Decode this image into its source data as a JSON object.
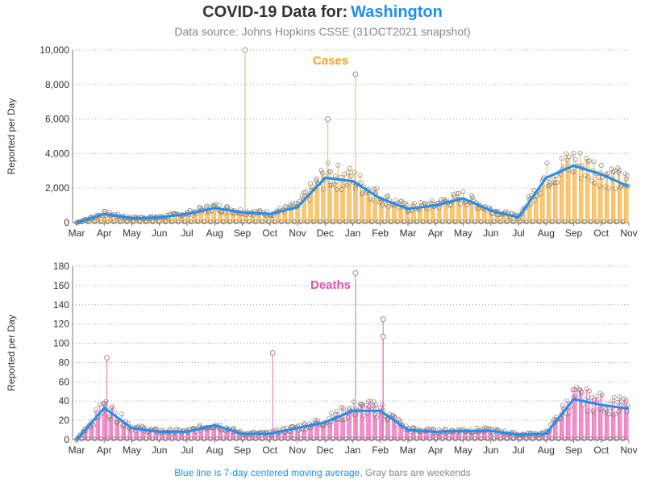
{
  "header": {
    "title_prefix": "COVID-19 Data for:",
    "state": "Washington",
    "subtitle": "Data source: Johns Hopkins CSSE (31OCT2021 snapshot)"
  },
  "footer": {
    "note_blue": "Blue line is 7-day centered moving average,",
    "note_gray": "Gray bars are weekends"
  },
  "colors": {
    "state": "#1e8ff0",
    "moving_average": "#1e8ff0",
    "cases": "#f5a623",
    "deaths": "#e84fa8",
    "weekend_marker": "#888888"
  },
  "chart_data": [
    {
      "type": "bar",
      "title": "Cases",
      "ylabel": "Reported per Day",
      "ylim": [
        0,
        10000
      ],
      "yticks": [
        0,
        2000,
        4000,
        6000,
        8000,
        10000
      ],
      "ytick_labels": [
        "0",
        "2,000",
        "4,000",
        "6,000",
        "8,000",
        "10,000"
      ],
      "xtick_labels": [
        "Mar",
        "Apr",
        "May",
        "Jun",
        "Jul",
        "Aug",
        "Sep",
        "Oct",
        "Nov",
        "Dec",
        "Jan",
        "Feb",
        "Mar",
        "Apr",
        "May",
        "Jun",
        "Jul",
        "Aug",
        "Sep",
        "Oct",
        "Nov"
      ],
      "grid": true,
      "series": [
        {
          "name": "7-day centered moving average",
          "x": [
            "Mar",
            "Apr",
            "May",
            "Jun",
            "Jul",
            "Aug",
            "Sep",
            "Oct",
            "Nov",
            "Dec",
            "Jan",
            "Feb",
            "Mar",
            "Apr",
            "May",
            "Jun",
            "Jul",
            "Aug",
            "Sep",
            "Oct",
            "Nov"
          ],
          "values": [
            0,
            500,
            250,
            300,
            500,
            850,
            600,
            500,
            900,
            2600,
            2400,
            1400,
            800,
            1000,
            1400,
            700,
            300,
            2600,
            3300,
            2800,
            2100
          ]
        }
      ],
      "peaks": [
        {
          "x": "Dec",
          "value": 6000
        },
        {
          "x": "Jan",
          "value": 8600
        },
        {
          "x": "Sep",
          "value": 10000
        }
      ]
    },
    {
      "type": "bar",
      "title": "Deaths",
      "ylabel": "Reported per Day",
      "ylim": [
        0,
        180
      ],
      "yticks": [
        0,
        20,
        40,
        60,
        80,
        100,
        120,
        140,
        160,
        180
      ],
      "ytick_labels": [
        "0",
        "20",
        "40",
        "60",
        "80",
        "100",
        "120",
        "140",
        "160",
        "180"
      ],
      "xtick_labels": [
        "Mar",
        "Apr",
        "May",
        "Jun",
        "Jul",
        "Aug",
        "Sep",
        "Oct",
        "Nov",
        "Dec",
        "Jan",
        "Feb",
        "Mar",
        "Apr",
        "May",
        "Jun",
        "Jul",
        "Aug",
        "Sep",
        "Oct",
        "Nov"
      ],
      "grid": true,
      "series": [
        {
          "name": "7-day centered moving average",
          "x": [
            "Mar",
            "Apr",
            "May",
            "Jun",
            "Jul",
            "Aug",
            "Sep",
            "Oct",
            "Nov",
            "Dec",
            "Jan",
            "Feb",
            "Mar",
            "Apr",
            "May",
            "Jun",
            "Jul",
            "Aug",
            "Sep",
            "Oct",
            "Nov"
          ],
          "values": [
            0,
            33,
            12,
            8,
            8,
            15,
            6,
            6,
            12,
            18,
            30,
            30,
            10,
            8,
            9,
            9,
            5,
            6,
            42,
            36,
            32
          ]
        }
      ],
      "peaks": [
        {
          "x": "Apr",
          "value": 85
        },
        {
          "x": "Jan",
          "value": 173
        },
        {
          "x": "Feb",
          "value": 125
        },
        {
          "x": "Feb",
          "value": 107
        },
        {
          "x": "Oct",
          "value": 90
        }
      ]
    }
  ]
}
